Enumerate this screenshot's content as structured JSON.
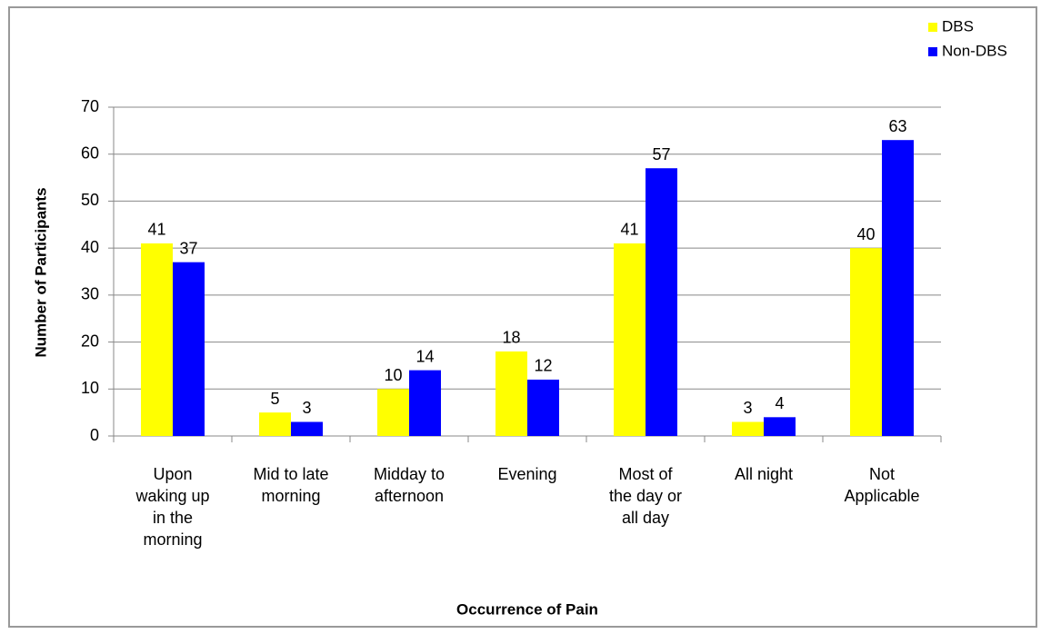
{
  "chart_data": {
    "type": "bar",
    "categories": [
      "Upon waking up in the morning",
      "Mid to late morning",
      "Midday to afternoon",
      "Evening",
      "Most of the day or all day",
      "All night",
      "Not Applicable"
    ],
    "series": [
      {
        "name": "DBS",
        "color": "#ffff00",
        "values": [
          41,
          5,
          10,
          18,
          41,
          3,
          40
        ]
      },
      {
        "name": "Non-DBS",
        "color": "#0000ff",
        "values": [
          37,
          3,
          14,
          12,
          57,
          4,
          63
        ]
      }
    ],
    "ylim": [
      0,
      70
    ],
    "yticks": [
      0,
      10,
      20,
      30,
      40,
      50,
      60,
      70
    ],
    "grid": true,
    "y_label": "Number of Participants",
    "x_label": "Occurrence of Pain",
    "legend": "top-right"
  }
}
